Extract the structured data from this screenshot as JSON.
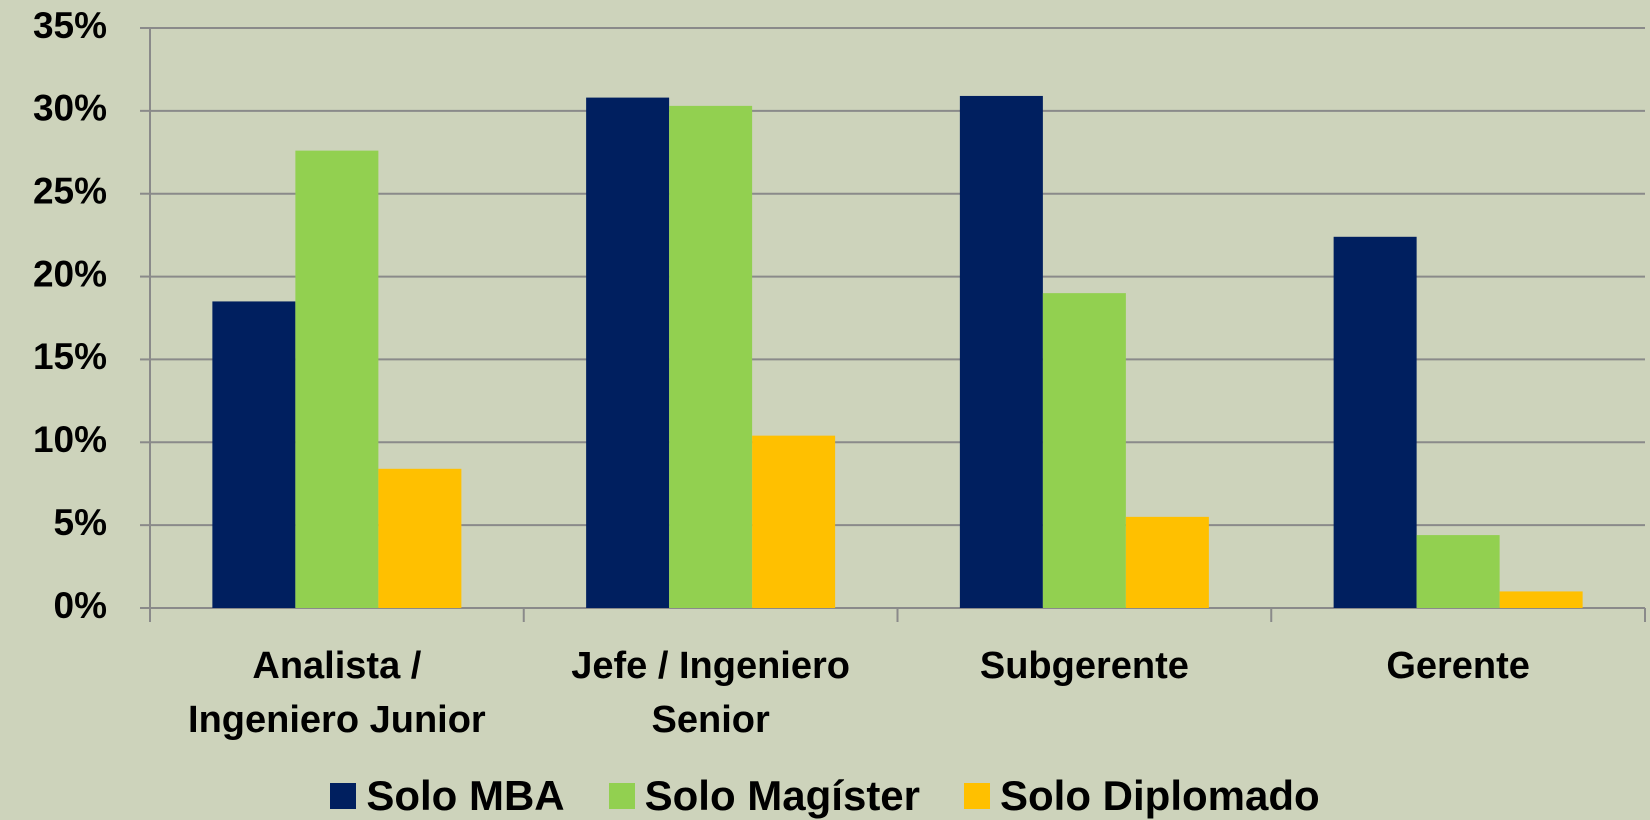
{
  "chart_data": {
    "type": "bar",
    "categories": [
      "Analista / Ingeniero Junior",
      "Jefe / Ingeniero Senior",
      "Subgerente",
      "Gerente"
    ],
    "series": [
      {
        "name": "Solo MBA",
        "color": "#001f5f",
        "values": [
          18.5,
          30.8,
          30.9,
          22.4
        ]
      },
      {
        "name": "Solo Magíster",
        "color": "#92d050",
        "values": [
          27.6,
          30.3,
          19.0,
          4.4
        ]
      },
      {
        "name": "Solo Diplomado",
        "color": "#ffc000",
        "values": [
          8.4,
          10.4,
          5.5,
          1.0
        ]
      }
    ],
    "ylim": [
      0,
      35
    ],
    "yticks": [
      {
        "value": 0,
        "label": "0%"
      },
      {
        "value": 5,
        "label": "5%"
      },
      {
        "value": 10,
        "label": "10%"
      },
      {
        "value": 15,
        "label": "15%"
      },
      {
        "value": 20,
        "label": "20%"
      },
      {
        "value": 25,
        "label": "25%"
      },
      {
        "value": 30,
        "label": "30%"
      },
      {
        "value": 35,
        "label": "35%"
      }
    ],
    "grid": true,
    "legend": "bottom"
  }
}
